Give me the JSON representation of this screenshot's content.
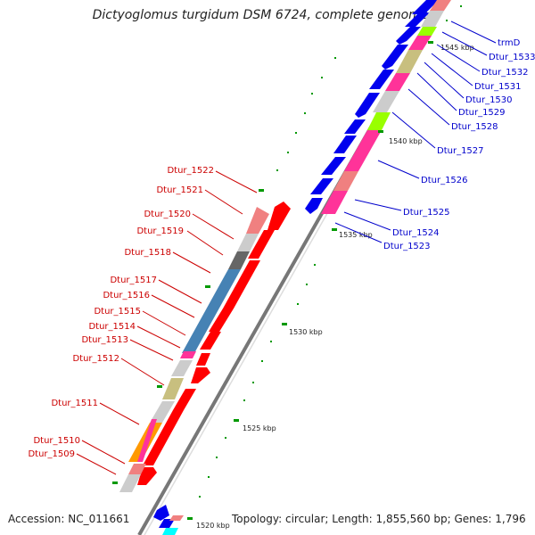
{
  "title": "Dictyoglomus turgidum DSM 6724, complete genome",
  "footer": {
    "accession": "Accession: NC_011661",
    "topology": "Topology: circular; Length: 1,855,560 bp; Genes: 1,796"
  },
  "kbp_labels": [
    "1545 kbp",
    "1540 kbp",
    "1535 kbp",
    "1530 kbp",
    "1525 kbp",
    "1520 kbp"
  ],
  "left_genes": [
    "Dtur_1522",
    "Dtur_1521",
    "Dtur_1520",
    "Dtur_1519",
    "Dtur_1518",
    "Dtur_1517",
    "Dtur_1516",
    "Dtur_1515",
    "Dtur_1514",
    "Dtur_1513",
    "Dtur_1512",
    "Dtur_1511",
    "Dtur_1510",
    "Dtur_1509"
  ],
  "right_genes": [
    "trmD",
    "Dtur_1533",
    "Dtur_1532",
    "Dtur_1531",
    "Dtur_1530",
    "Dtur_1529",
    "Dtur_1528",
    "Dtur_1527",
    "Dtur_1526",
    "Dtur_1525",
    "Dtur_1524",
    "Dtur_1523"
  ],
  "colors": {
    "forward_gene": "#ff0000",
    "reverse_gene": "#0000ee",
    "left_label": "#cc0000",
    "right_label": "#0000cc",
    "backbone": "#777777",
    "tick": "#009900"
  }
}
